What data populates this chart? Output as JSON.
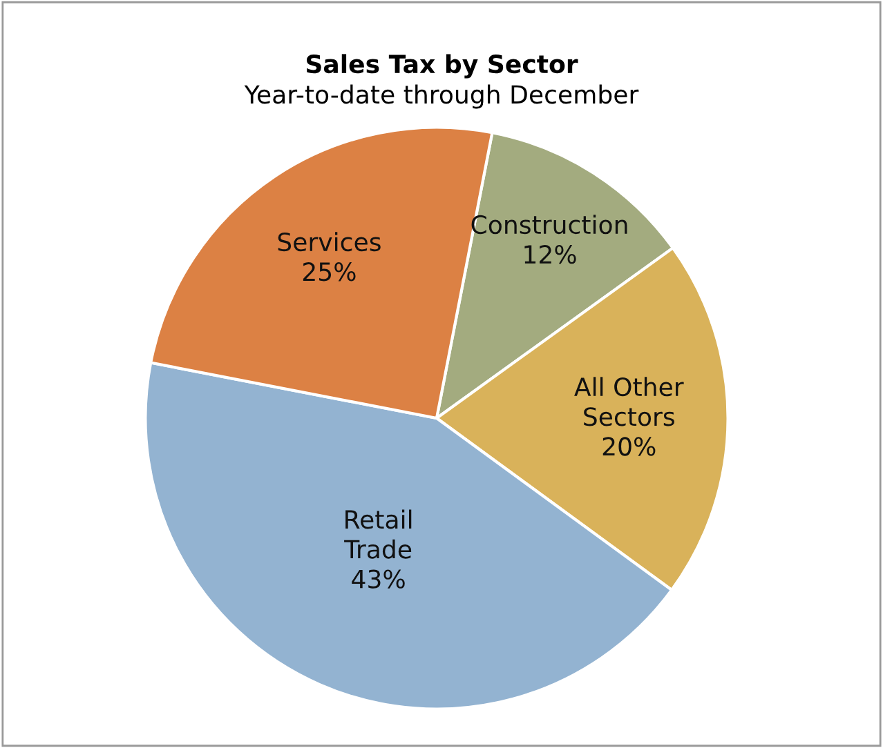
{
  "chart_data": {
    "type": "pie",
    "title": "Sales Tax by Sector",
    "subtitle": "Year-to-date through December",
    "categories": [
      "Construction",
      "All Other\nSectors",
      "Retail\nTrade",
      "Services"
    ],
    "values": [
      12,
      20,
      43,
      25
    ],
    "colors": [
      "#a3ab7f",
      "#d9b25a",
      "#93b3d1",
      "#dc8144"
    ],
    "value_labels": [
      "12%",
      "20%",
      "43%",
      "25%"
    ],
    "legend": false
  }
}
